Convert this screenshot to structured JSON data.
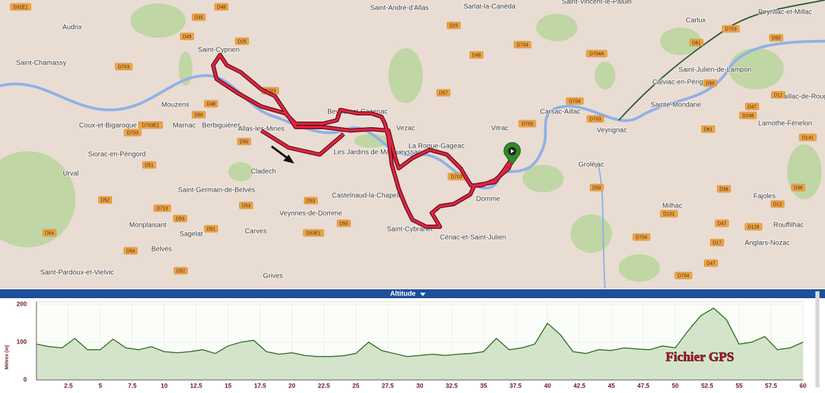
{
  "map": {
    "places": [
      "Audrix",
      "Saint-Chamassy",
      "Saint-Cyprien",
      "Mouzens",
      "Marnac",
      "Berbiguières",
      "Allas-les-Mines",
      "Coux-et-Bigaroque",
      "Siorac-en-Périgord",
      "Urval",
      "Cladech",
      "Saint-Germain-de-Belvès",
      "Castelnaud-la-Chapelle",
      "Monplaisant",
      "Sagelat",
      "Carves",
      "Veyrines-de-Domme",
      "Saint-Cybranet",
      "Cénac-et-Saint-Julien",
      "Domme",
      "Belvès",
      "Saint-Pardoux-et-Vielvic",
      "Grives",
      "Vezac",
      "Vitrac",
      "Carsac-Aillac",
      "Veyrignac",
      "Groléjac",
      "Saint-André-d'Allas",
      "Sarlat-la-Canéda",
      "Saint-Vincent-le-Paluel",
      "Carlux",
      "Peyrillac-et-Millac",
      "Saint-Julien-de-Lampon",
      "Calviac-en-Périgord",
      "Sainte-Mondane",
      "Lamothe-Fénelon",
      "Nadaillac-de-Rouge",
      "Milhac",
      "Fajoles",
      "Rouffilhac",
      "Anglars-Nozac",
      "Beynac-et-Cazenac",
      "La Roque-Gageac",
      "Les Jardins de Marqueyssac"
    ],
    "roads": [
      "D35",
      "D48",
      "D49",
      "D25",
      "D703",
      "D703",
      "D48",
      "D50",
      "D703E1",
      "D703",
      "D50",
      "D51",
      "D52",
      "D710",
      "D53",
      "D51",
      "D53",
      "D53",
      "D50",
      "D53E1",
      "D54",
      "D54",
      "D52",
      "D25",
      "D46",
      "D704",
      "D57",
      "D703",
      "D704",
      "D703",
      "D703",
      "D704A",
      "D50",
      "D61",
      "D703",
      "D50",
      "D12",
      "D47",
      "D248",
      "D61",
      "D141",
      "D50",
      "D36",
      "D36",
      "D12",
      "D101",
      "D47",
      "D128",
      "D17",
      "D704",
      "D47",
      "D704",
      "D31E1"
    ]
  },
  "chart_data": {
    "type": "area",
    "title": "Altitude",
    "y_label": "Mètres (m)",
    "watermark": "Fichier GPS",
    "x": [
      0,
      1,
      2,
      3,
      4,
      5,
      6,
      7,
      8,
      9,
      10,
      11,
      12,
      13,
      14,
      15,
      16,
      17,
      18,
      19,
      20,
      21,
      22,
      23,
      24,
      25,
      26,
      27,
      28,
      29,
      30,
      31,
      32,
      33,
      34,
      35,
      36,
      37,
      38,
      39,
      40,
      41,
      42,
      43,
      44,
      45,
      46,
      47,
      48,
      49,
      50,
      51,
      52,
      53,
      54,
      55,
      56,
      57,
      58,
      59,
      60
    ],
    "values": [
      95,
      88,
      85,
      110,
      80,
      80,
      108,
      85,
      80,
      88,
      75,
      72,
      75,
      80,
      70,
      90,
      100,
      105,
      75,
      68,
      72,
      65,
      62,
      62,
      64,
      70,
      100,
      78,
      70,
      62,
      65,
      68,
      65,
      68,
      70,
      75,
      110,
      80,
      85,
      95,
      150,
      120,
      75,
      70,
      80,
      78,
      85,
      82,
      80,
      90,
      85,
      130,
      170,
      190,
      160,
      95,
      100,
      115,
      80,
      85,
      100
    ],
    "color": "#2d6b1e",
    "xlim": [
      0,
      60
    ],
    "xticks": [
      2.5,
      5,
      7.5,
      10,
      12.5,
      15,
      17.5,
      20,
      22.5,
      25,
      27.5,
      30,
      32.5,
      35,
      37.5,
      40,
      42.5,
      45,
      47.5,
      50,
      52.5,
      55,
      57.5,
      60
    ],
    "ylim": [
      0,
      200
    ],
    "yticks": [
      0,
      100,
      200
    ],
    "grid": true
  }
}
